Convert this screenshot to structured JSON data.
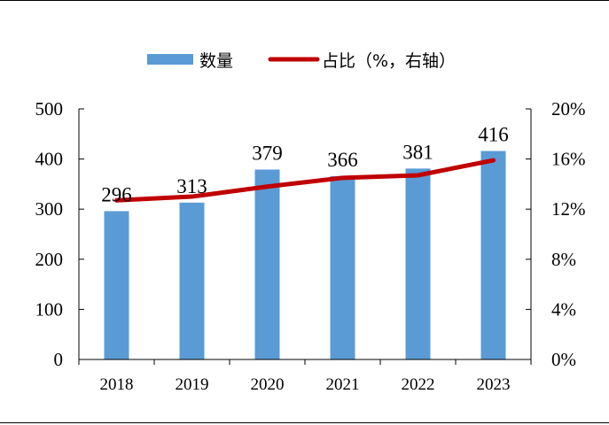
{
  "chart_data": {
    "type": "bar",
    "categories": [
      "2018",
      "2019",
      "2020",
      "2021",
      "2022",
      "2023"
    ],
    "series": [
      {
        "name": "数量",
        "type": "bar",
        "axis": "left",
        "values": [
          296,
          313,
          379,
          366,
          381,
          416
        ],
        "data_labels": [
          "296",
          "313",
          "379",
          "366",
          "381",
          "416"
        ],
        "color": "#5B9BD5"
      },
      {
        "name": "占比（%，右轴）",
        "type": "line",
        "axis": "right",
        "values": [
          12.7,
          13.0,
          13.8,
          14.5,
          14.7,
          15.9
        ],
        "color": "#C00000"
      }
    ],
    "y_left": {
      "min": 0,
      "max": 500,
      "ticks": [
        0,
        100,
        200,
        300,
        400,
        500
      ],
      "tick_labels": [
        "0",
        "100",
        "200",
        "300",
        "400",
        "500"
      ]
    },
    "y_right": {
      "min": 0,
      "max": 20,
      "ticks": [
        0,
        4,
        8,
        12,
        16,
        20
      ],
      "tick_labels": [
        "0%",
        "4%",
        "8%",
        "12%",
        "16%",
        "20%"
      ]
    },
    "legend_position": "top-center",
    "grid": false
  }
}
